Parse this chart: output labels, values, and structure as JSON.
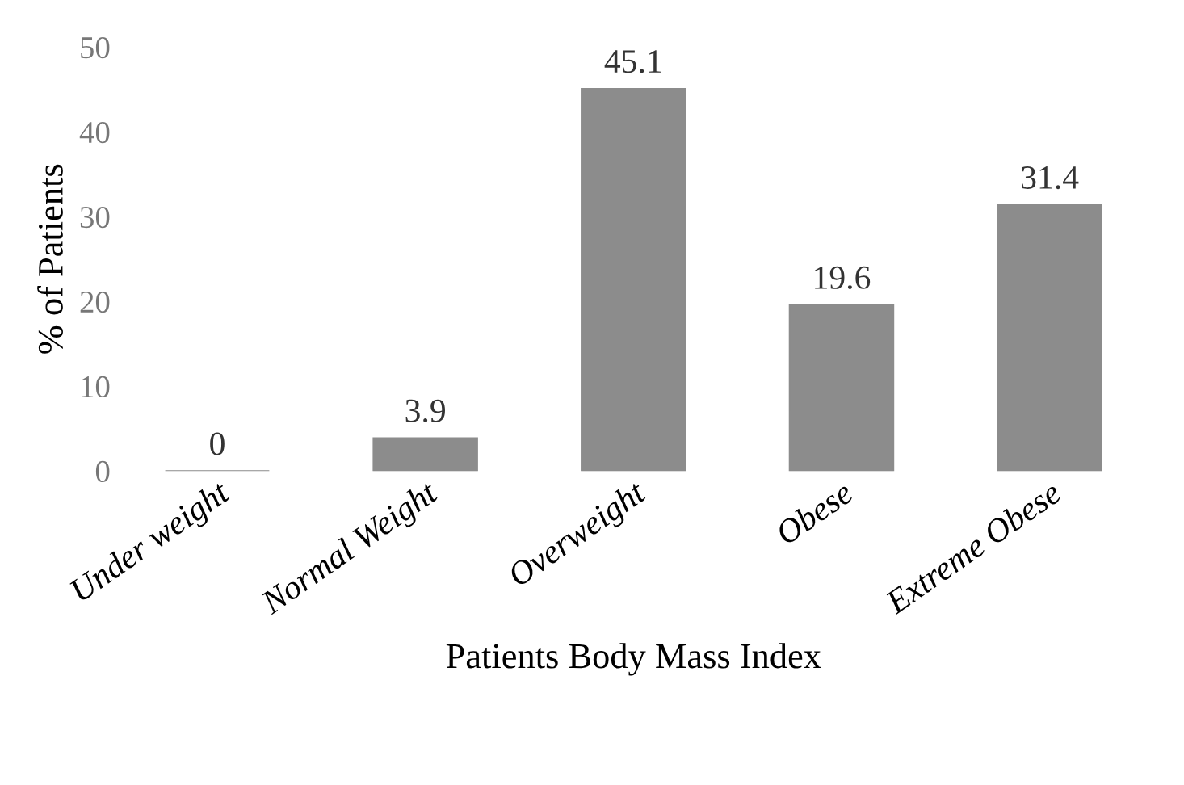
{
  "chart_data": {
    "type": "bar",
    "xlabel": "Patients Body Mass Index",
    "ylabel": "% of Patients",
    "categories": [
      "Under weight",
      "Normal Weight",
      "Overweight",
      "Obese",
      "Extreme Obese"
    ],
    "values": [
      0,
      3.9,
      45.1,
      19.6,
      31.4
    ],
    "color": "#8c8c8c",
    "ylim": [
      0,
      50
    ],
    "yticks": [
      0,
      10,
      20,
      30,
      40,
      50
    ],
    "grid": false,
    "data_labels": true
  }
}
